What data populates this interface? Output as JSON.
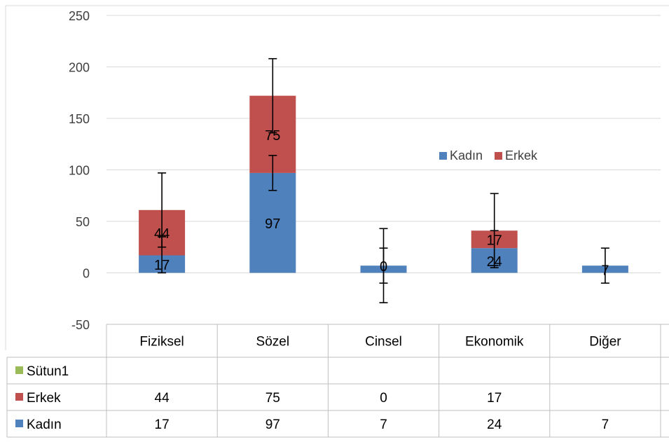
{
  "chart_data": {
    "type": "bar",
    "stacked": true,
    "categories": [
      "Fiziksel",
      "Sözel",
      "Cinsel",
      "Ekonomik",
      "Diğer"
    ],
    "series": [
      {
        "name": "Kadın",
        "values": [
          17,
          97,
          7,
          24,
          7
        ],
        "color": "#4f81bd",
        "data_labels": [
          "17",
          "97",
          "",
          "24",
          "7"
        ],
        "error_bars": [
          {
            "low": 0,
            "high": 35
          },
          {
            "low": 80,
            "high": 114
          },
          {
            "low": -10,
            "high": 24
          },
          {
            "low": 7,
            "high": 41
          },
          {
            "low": -10,
            "high": 24
          }
        ]
      },
      {
        "name": "Erkek",
        "values": [
          44,
          75,
          0,
          17,
          null
        ],
        "color": "#c0504d",
        "data_labels": [
          "44",
          "75",
          "0",
          "17",
          ""
        ],
        "error_bars": [
          {
            "low": 25,
            "high": 97
          },
          {
            "low": 136,
            "high": 208
          },
          {
            "low": -29,
            "high": 43
          },
          {
            "low": 5,
            "high": 77
          },
          null
        ]
      },
      {
        "name": "Sütun1",
        "values": [
          null,
          null,
          null,
          null,
          null
        ],
        "color": "#9bbb59"
      }
    ],
    "ylim": [
      -50,
      250
    ],
    "yticks": [
      250,
      200,
      150,
      100,
      50,
      0,
      -50
    ],
    "legend": {
      "position": "right",
      "entries": [
        "Kadın",
        "Erkek"
      ]
    },
    "data_table": {
      "rows": [
        {
          "name": "Sütun1",
          "cells": [
            "",
            "",
            "",
            "",
            ""
          ]
        },
        {
          "name": "Erkek",
          "cells": [
            "44",
            "75",
            "0",
            "17",
            ""
          ]
        },
        {
          "name": "Kadın",
          "cells": [
            "17",
            "97",
            "7",
            "24",
            "7"
          ]
        }
      ]
    },
    "title": "",
    "xlabel": "",
    "ylabel": "",
    "grid": true
  }
}
